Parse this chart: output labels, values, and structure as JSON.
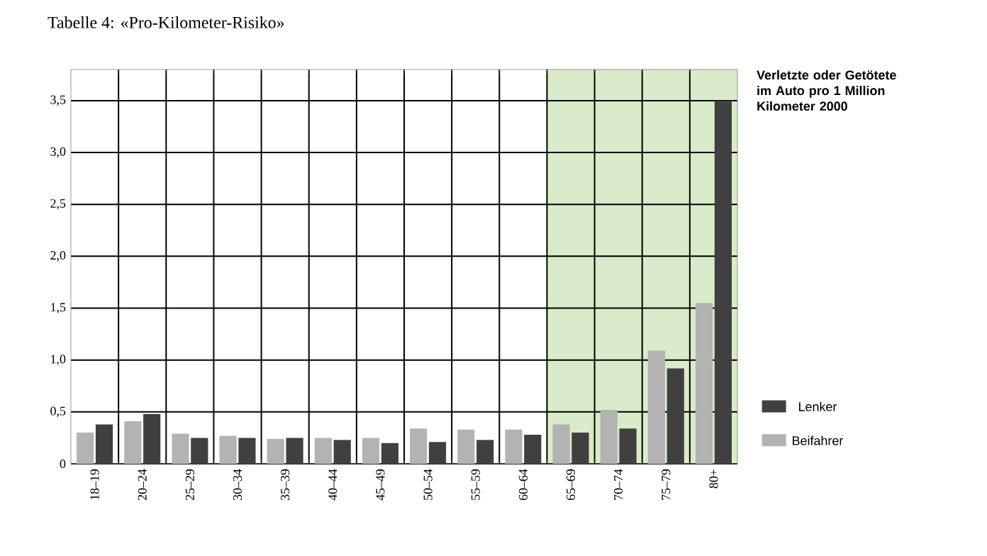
{
  "chart_data": {
    "type": "bar",
    "title": "Tabelle 4: «Pro-Kilometer-Risiko»",
    "annotations": [
      "Verletzte oder Getötete im Auto pro 1 Million Kilometer 2000"
    ],
    "categories": [
      "18–19",
      "20–24",
      "25–29",
      "30–34",
      "35–39",
      "40–44",
      "45–49",
      "50–54",
      "55–59",
      "60–64",
      "65–69",
      "70–74",
      "75–79",
      "80+"
    ],
    "series": [
      {
        "name": "Beifahrer",
        "color": "#b3b3b3",
        "values": [
          0.3,
          0.41,
          0.29,
          0.27,
          0.24,
          0.25,
          0.25,
          0.34,
          0.33,
          0.33,
          0.38,
          0.52,
          1.09,
          1.55
        ]
      },
      {
        "name": "Lenker",
        "color": "#404040",
        "values": [
          0.38,
          0.48,
          0.25,
          0.25,
          0.25,
          0.23,
          0.2,
          0.21,
          0.23,
          0.28,
          0.3,
          0.34,
          0.92,
          3.5
        ]
      }
    ],
    "ylim": [
      0,
      3.8
    ],
    "yticks": [
      0,
      {
        "value": 0.5,
        "label": "0,5"
      },
      {
        "value": 1,
        "label": "1,0"
      },
      {
        "value": 1.5,
        "label": "1,5"
      },
      {
        "value": 2,
        "label": "2,0"
      },
      {
        "value": 2.5,
        "label": "2,5"
      },
      {
        "value": 3,
        "label": "3,0"
      },
      {
        "value": 3.5,
        "label": "3,5"
      }
    ],
    "bands": [
      {
        "axis": "x",
        "from": "65–69",
        "to": "80+",
        "color": "#d9ebc9"
      }
    ],
    "grid": true,
    "legend": "right"
  }
}
